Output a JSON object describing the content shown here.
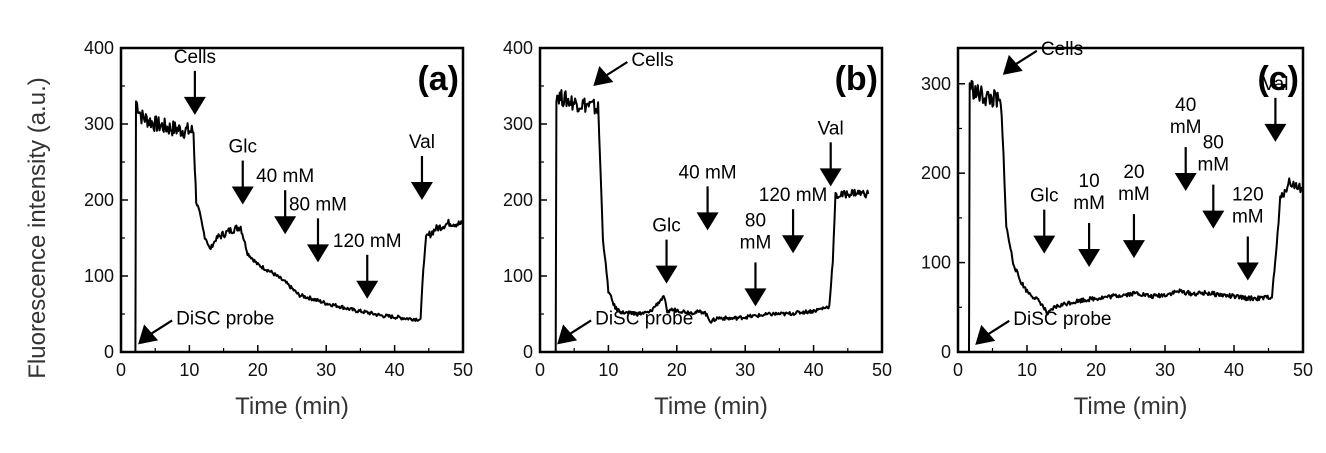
{
  "ylabel": "Fluorescence intensity (a.u.)",
  "chart_data": [
    {
      "type": "line",
      "panel_label": "(a)",
      "xlabel": "Time (min)",
      "xlim": [
        0,
        50
      ],
      "ylim": [
        0,
        400
      ],
      "xticks": [
        0,
        10,
        20,
        30,
        40,
        50
      ],
      "yticks": [
        0,
        100,
        200,
        300,
        400
      ],
      "trace": {
        "x": [
          0,
          2.1,
          2.2,
          3,
          5,
          7,
          9,
          10.6,
          10.8,
          11,
          12,
          13,
          14,
          16,
          17.5,
          18.5,
          20,
          22,
          24,
          26,
          28,
          30,
          32,
          34,
          36,
          38,
          40,
          42,
          43.8,
          44.2,
          44.6,
          46,
          48,
          50
        ],
        "y": [
          0,
          0,
          330,
          310,
          300,
          295,
          292,
          290,
          240,
          200,
          160,
          135,
          150,
          160,
          165,
          130,
          115,
          105,
          92,
          75,
          70,
          64,
          60,
          55,
          52,
          48,
          46,
          44,
          43,
          110,
          150,
          162,
          170,
          168
        ]
      },
      "annotations": [
        {
          "text": "Cells",
          "x": 10.8,
          "y": 312,
          "dir": "down"
        },
        {
          "text": "Glc",
          "x": 17.8,
          "y": 194,
          "dir": "down"
        },
        {
          "text": "40 mM",
          "x": 24,
          "y": 155,
          "dir": "down"
        },
        {
          "text": "80 mM",
          "x": 28.8,
          "y": 118,
          "dir": "down"
        },
        {
          "text": "120 mM",
          "x": 36,
          "y": 70,
          "dir": "down"
        },
        {
          "text": "Val",
          "x": 44,
          "y": 200,
          "dir": "down"
        },
        {
          "text": "DiSC probe",
          "x": 2.5,
          "y": 10,
          "dir": "up-left"
        }
      ]
    },
    {
      "type": "line",
      "panel_label": "(b)",
      "xlabel": "Time (min)",
      "xlim": [
        0,
        50
      ],
      "ylim": [
        0,
        400
      ],
      "xticks": [
        0,
        10,
        20,
        30,
        40,
        50
      ],
      "yticks": [
        0,
        100,
        200,
        300,
        400
      ],
      "trace": {
        "x": [
          0,
          2.3,
          2.4,
          3,
          5,
          7,
          8.5,
          8.8,
          9.2,
          10,
          11,
          12,
          14,
          16,
          17.8,
          18.2,
          18.6,
          19,
          20,
          22,
          24,
          25,
          26,
          28,
          30,
          32,
          34,
          36,
          38,
          40,
          42.3,
          42.8,
          43.2,
          46,
          48
        ],
        "y": [
          0,
          0,
          340,
          335,
          328,
          325,
          320,
          250,
          150,
          80,
          58,
          52,
          50,
          52,
          70,
          72,
          50,
          56,
          55,
          52,
          53,
          40,
          45,
          44,
          46,
          48,
          50,
          50,
          52,
          54,
          60,
          120,
          205,
          210,
          208
        ]
      },
      "annotations": [
        {
          "text": "Cells",
          "x": 7.8,
          "y": 350,
          "dir": "up-left"
        },
        {
          "text": "Glc",
          "x": 18.5,
          "y": 90,
          "dir": "down"
        },
        {
          "text": "40 mM",
          "x": 24.5,
          "y": 160,
          "dir": "down"
        },
        {
          "text": "80 mM",
          "x": 31.5,
          "y": 60,
          "dir": "down"
        },
        {
          "text": "120 mM",
          "x": 37,
          "y": 130,
          "dir": "down"
        },
        {
          "text": "Val",
          "x": 42.5,
          "y": 218,
          "dir": "down"
        },
        {
          "text": "DiSC probe",
          "x": 2.5,
          "y": 10,
          "dir": "up-left"
        }
      ]
    },
    {
      "type": "line",
      "panel_label": "(c)",
      "xlabel": "Time (min)",
      "xlim": [
        0,
        50
      ],
      "ylim": [
        0,
        340
      ],
      "xticks": [
        0,
        10,
        20,
        30,
        40,
        50
      ],
      "yticks": [
        0,
        100,
        200,
        300
      ],
      "trace": {
        "x": [
          0,
          1.6,
          1.7,
          2.5,
          4,
          5.5,
          6.2,
          6.6,
          7,
          8,
          9,
          10,
          12,
          13,
          14,
          16,
          18,
          20,
          22,
          24,
          26,
          28,
          30,
          32,
          34,
          36,
          38,
          40,
          42,
          44,
          45.5,
          46.2,
          46.7,
          48,
          50
        ],
        "y": [
          0,
          0,
          300,
          290,
          285,
          282,
          275,
          220,
          140,
          100,
          80,
          68,
          55,
          42,
          50,
          55,
          58,
          60,
          62,
          64,
          66,
          62,
          64,
          68,
          65,
          66,
          64,
          62,
          60,
          60,
          62,
          120,
          170,
          190,
          182
        ]
      },
      "annotations": [
        {
          "text": "Cells",
          "x": 6.5,
          "y": 310,
          "dir": "up-left"
        },
        {
          "text": "Glc",
          "x": 12.5,
          "y": 110,
          "dir": "down"
        },
        {
          "text": "10 mM",
          "x": 19,
          "y": 95,
          "dir": "down"
        },
        {
          "text": "20 mM",
          "x": 25.5,
          "y": 105,
          "dir": "down"
        },
        {
          "text": "40 mM",
          "x": 33,
          "y": 180,
          "dir": "down"
        },
        {
          "text": "80 mM",
          "x": 37,
          "y": 138,
          "dir": "down"
        },
        {
          "text": "120 mM",
          "x": 42,
          "y": 80,
          "dir": "down"
        },
        {
          "text": "Val",
          "x": 46,
          "y": 235,
          "dir": "down"
        },
        {
          "text": "DiSC probe",
          "x": 2.5,
          "y": 8,
          "dir": "up-left"
        }
      ]
    }
  ]
}
